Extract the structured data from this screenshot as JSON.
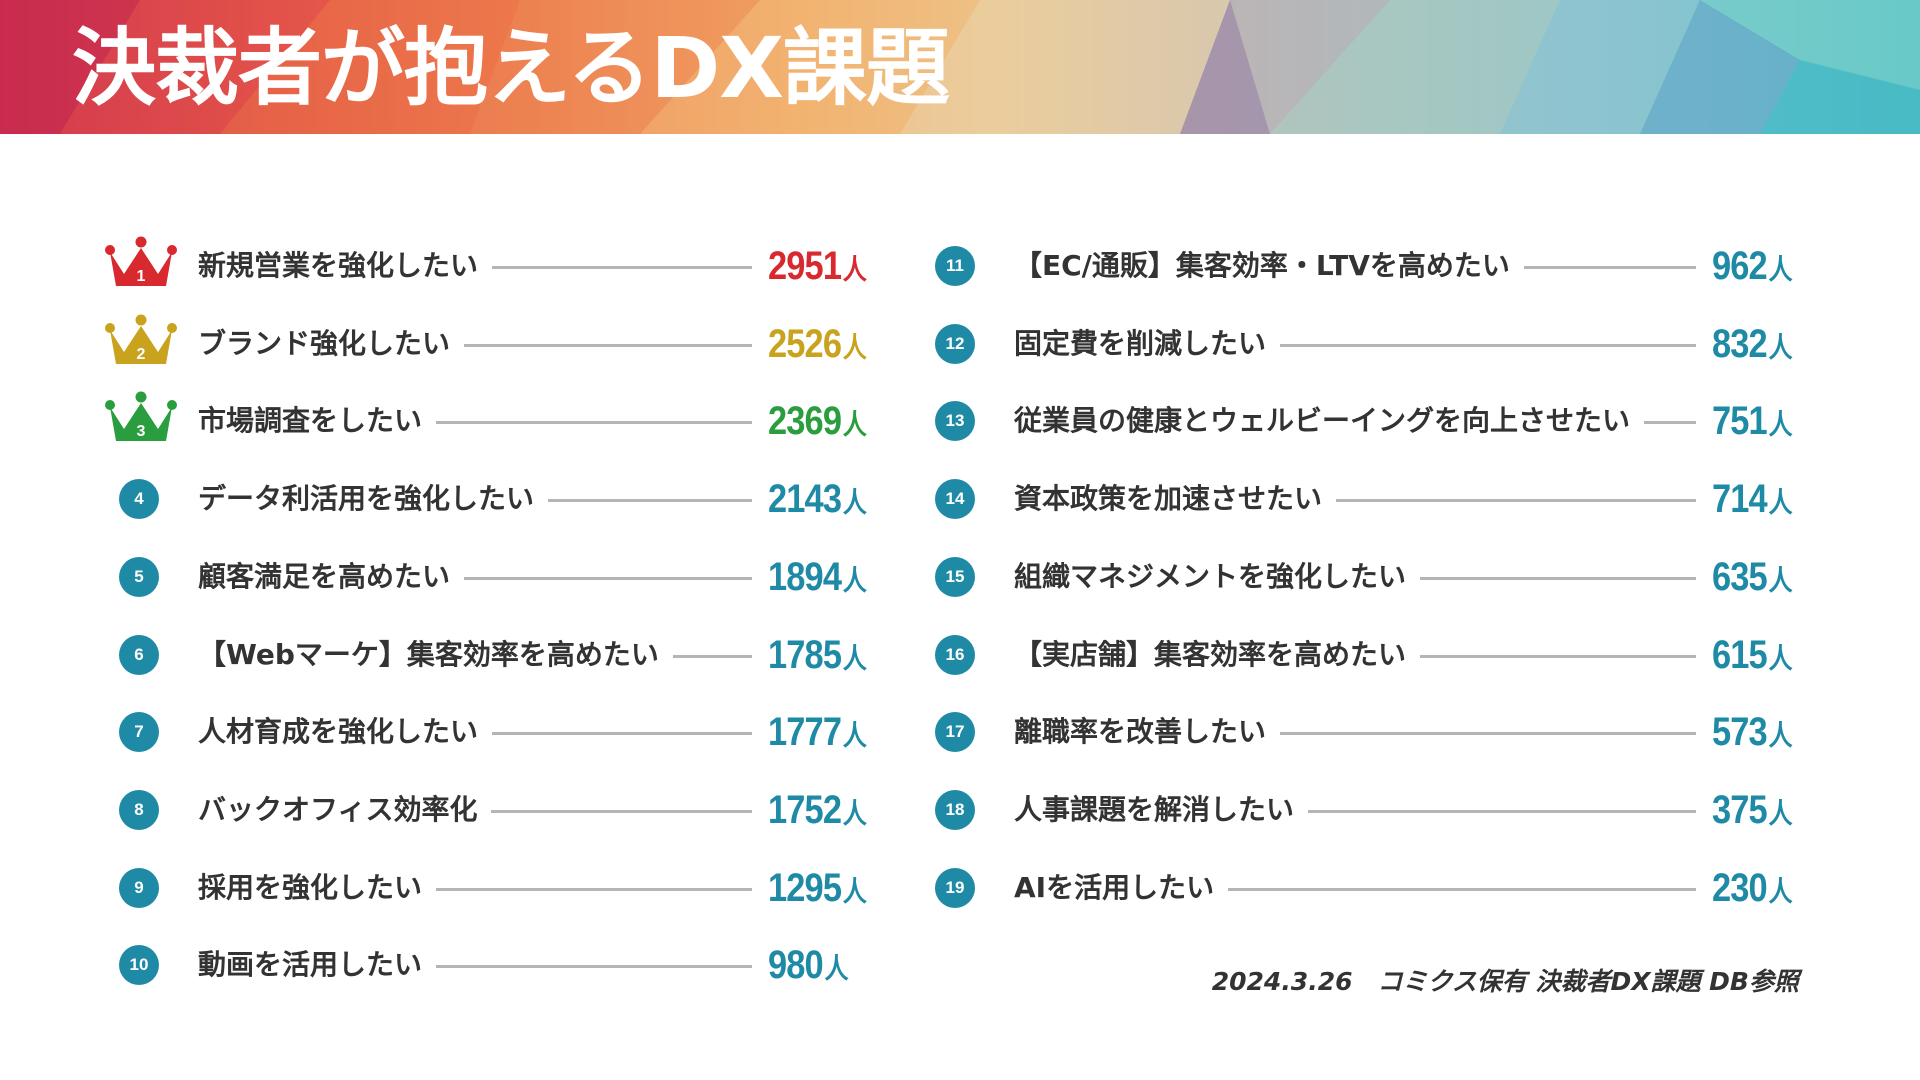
{
  "title": "決裁者が抱えるDX課題",
  "unit": "人",
  "colors": {
    "rank1": "#d8292f",
    "rank2": "#c9a21e",
    "rank3": "#2a9d3f",
    "default": "#1f8aa6"
  },
  "items": [
    {
      "rank": "1",
      "label": "新規営業を強化したい",
      "value": "2951"
    },
    {
      "rank": "2",
      "label": "ブランド強化したい",
      "value": "2526"
    },
    {
      "rank": "3",
      "label": "市場調査をしたい",
      "value": "2369"
    },
    {
      "rank": "4",
      "label": "データ利活用を強化したい",
      "value": "2143"
    },
    {
      "rank": "5",
      "label": "顧客満足を高めたい",
      "value": "1894"
    },
    {
      "rank": "6",
      "label": "【Webマーケ】集客効率を高めたい",
      "value": "1785"
    },
    {
      "rank": "7",
      "label": "人材育成を強化したい",
      "value": "1777"
    },
    {
      "rank": "8",
      "label": "バックオフィス効率化",
      "value": "1752"
    },
    {
      "rank": "9",
      "label": "採用を強化したい",
      "value": "1295"
    },
    {
      "rank": "10",
      "label": "動画を活用したい",
      "value": "980"
    },
    {
      "rank": "11",
      "label": "【EC/通販】集客効率・LTVを高めたい",
      "value": "962"
    },
    {
      "rank": "12",
      "label": "固定費を削減したい",
      "value": "832"
    },
    {
      "rank": "13",
      "label": "従業員の健康とウェルビーイングを向上させたい",
      "value": "751"
    },
    {
      "rank": "14",
      "label": "資本政策を加速させたい",
      "value": "714"
    },
    {
      "rank": "15",
      "label": "組織マネジメントを強化したい",
      "value": "635"
    },
    {
      "rank": "16",
      "label": "【実店舗】集客効率を高めたい",
      "value": "615"
    },
    {
      "rank": "17",
      "label": "離職率を改善したい",
      "value": "573"
    },
    {
      "rank": "18",
      "label": "人事課題を解消したい",
      "value": "375"
    },
    {
      "rank": "19",
      "label": "AIを活用したい",
      "value": "230"
    }
  ],
  "footer": "2024.3.26　コミクス保有 決裁者DX課題 DB参照"
}
